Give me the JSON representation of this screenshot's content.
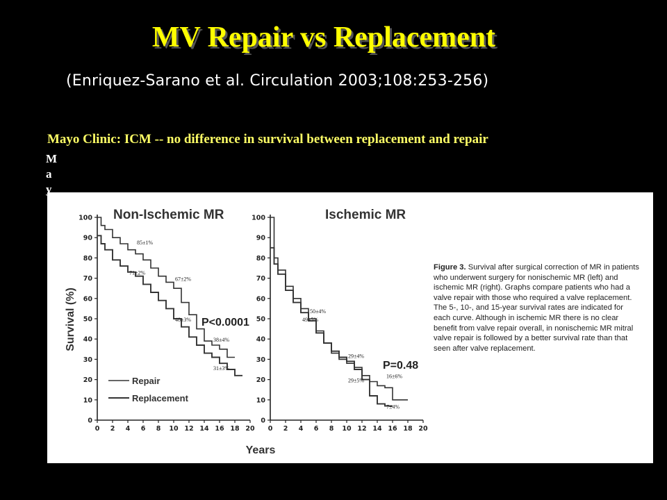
{
  "slide": {
    "title": "MV Repair vs Replacement",
    "citation": "(Enriquez-Sarano et al. Circulation 2003;108:253-256)",
    "subtitle": "Mayo Clinic: ICM -- no difference in survival between replacement and repair",
    "vertical_fragment": [
      "M",
      "a",
      "y"
    ]
  },
  "figure": {
    "caption_label": "Figure 3.",
    "caption_text": "Survival after surgical correction of MR in patients who underwent surgery for nonischemic MR (left) and ischemic MR (right). Graphs compare patients who had a valve repair with those who required a valve replacement. The 5-, 10-, and 15-year survival rates are indicated for each curve. Although in ischemic MR there is no clear benefit from valve repair overall, in nonischemic MR mitral valve repair is followed by a better survival rate than that seen after valve replacement.",
    "ylabel": "Survival (%)",
    "xlabel": "Years",
    "legend": [
      "Repair",
      "Replacement"
    ],
    "line_color": "#333333"
  },
  "chart_data": [
    {
      "type": "line",
      "title": "Non-Ischemic MR",
      "xlabel": "Years",
      "ylabel": "Survival (%)",
      "xlim": [
        0,
        20
      ],
      "ylim": [
        0,
        100
      ],
      "x_ticks": [
        0,
        2,
        4,
        6,
        8,
        10,
        12,
        14,
        16,
        18,
        20
      ],
      "y_ticks": [
        0,
        10,
        20,
        30,
        40,
        50,
        60,
        70,
        80,
        90,
        100
      ],
      "p_value": "P<0.0001",
      "series": [
        {
          "name": "Repair",
          "x": [
            0,
            0.5,
            1,
            2,
            3,
            4,
            5,
            6,
            7,
            8,
            9,
            10,
            11,
            12,
            13,
            14,
            15,
            16,
            17,
            18
          ],
          "y": [
            100,
            96,
            94,
            90,
            87,
            84,
            82,
            79,
            75,
            71,
            68,
            65,
            58,
            52,
            45,
            39,
            37,
            35,
            31,
            31
          ]
        },
        {
          "name": "Replacement",
          "x": [
            0,
            0.5,
            1,
            2,
            3,
            4,
            5,
            6,
            7,
            8,
            9,
            10,
            11,
            12,
            13,
            14,
            15,
            16,
            17,
            18,
            19
          ],
          "y": [
            91,
            87,
            84,
            79,
            76,
            73,
            71,
            67,
            63,
            59,
            55,
            50,
            46,
            41,
            37,
            33,
            31,
            28,
            25,
            22,
            22
          ]
        }
      ],
      "annotations": [
        {
          "text": "85±1%",
          "x": 5,
          "y": 86
        },
        {
          "text": "67±2%",
          "x": 10,
          "y": 68
        },
        {
          "text": "38±4%",
          "x": 15,
          "y": 38
        },
        {
          "text": "71±2%",
          "x": 4,
          "y": 71
        },
        {
          "text": "48±3%",
          "x": 10,
          "y": 48
        },
        {
          "text": "31±3%",
          "x": 15,
          "y": 24
        }
      ]
    },
    {
      "type": "line",
      "title": "Ischemic MR",
      "xlabel": "Years",
      "ylabel": "",
      "xlim": [
        0,
        20
      ],
      "ylim": [
        0,
        100
      ],
      "x_ticks": [
        0,
        2,
        4,
        6,
        8,
        10,
        12,
        14,
        16,
        18,
        20
      ],
      "y_ticks": [
        0,
        10,
        20,
        30,
        40,
        50,
        60,
        70,
        80,
        90,
        100
      ],
      "p_value": "P=0.48",
      "series": [
        {
          "name": "Repair",
          "x": [
            0,
            0.5,
            1,
            2,
            3,
            4,
            5,
            6,
            7,
            8,
            9,
            10,
            11,
            12,
            13,
            14,
            15,
            16,
            17,
            18
          ],
          "y": [
            100,
            80,
            74,
            66,
            60,
            55,
            50,
            44,
            38,
            33,
            30,
            28,
            26,
            22,
            19,
            17,
            16,
            10,
            10,
            10
          ]
        },
        {
          "name": "Replacement",
          "x": [
            0,
            0.5,
            1,
            2,
            3,
            4,
            5,
            6,
            7,
            8,
            9,
            10,
            11,
            12,
            13,
            14,
            15,
            16
          ],
          "y": [
            85,
            77,
            72,
            64,
            58,
            53,
            49,
            43,
            38,
            34,
            31,
            29,
            25,
            20,
            12,
            8,
            7,
            7
          ]
        }
      ],
      "annotations": [
        {
          "text": "50±4%",
          "x": 5,
          "y": 52
        },
        {
          "text": "49±5%",
          "x": 4,
          "y": 48
        },
        {
          "text": "29±4%",
          "x": 10,
          "y": 30
        },
        {
          "text": "29±5%",
          "x": 10,
          "y": 18
        },
        {
          "text": "16±6%",
          "x": 15,
          "y": 20
        },
        {
          "text": "7±4%",
          "x": 15,
          "y": 5
        }
      ]
    }
  ]
}
